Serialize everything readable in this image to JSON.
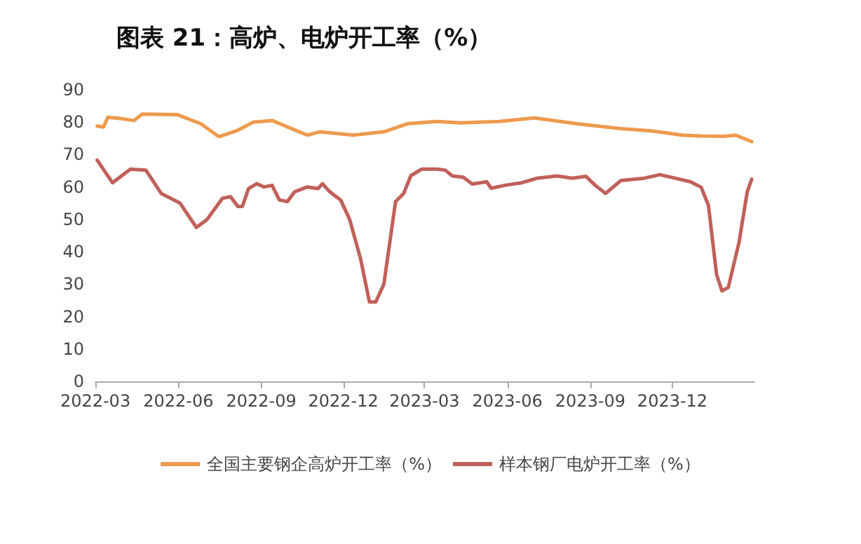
{
  "chart_data": {
    "type": "line",
    "title": "图表 21：高炉、电炉开工率（%）",
    "series": [
      {
        "name": "全国主要钢企高炉开工率（%）",
        "color": "#ed9a4e",
        "x": [
          "2022-03-03",
          "2022-03-10",
          "2022-03-15",
          "2022-04-01",
          "2022-04-13",
          "2022-04-22",
          "2022-05-31",
          "2022-06-26",
          "2022-07-16",
          "2022-08-06",
          "2022-08-23",
          "2022-09-13",
          "2022-10-22",
          "2022-11-05",
          "2022-12-12",
          "2023-01-15",
          "2023-02-10",
          "2023-03-15",
          "2023-04-10",
          "2023-05-23",
          "2023-07-01",
          "2023-08-17",
          "2023-10-05",
          "2023-11-08",
          "2023-12-12",
          "2024-01-02",
          "2024-01-27",
          "2024-02-09",
          "2024-02-27"
        ],
        "values": [
          78.8,
          78.5,
          81.5,
          81,
          80.5,
          82.5,
          82.3,
          79.5,
          75.5,
          77.5,
          80,
          80.5,
          76,
          77,
          76,
          77,
          79.5,
          80.2,
          79.8,
          80.2,
          81.3,
          79.5,
          78,
          77.3,
          76,
          75.7,
          75.6,
          76,
          74
        ]
      },
      {
        "name": "样本钢厂电炉开工率（%）",
        "color": "#c0605a",
        "x": [
          "2022-03-03",
          "2022-03-20",
          "2022-04-09",
          "2022-04-26",
          "2022-05-13",
          "2022-06-03",
          "2022-06-21",
          "2022-07-03",
          "2022-07-20",
          "2022-07-29",
          "2022-08-06",
          "2022-08-11",
          "2022-08-18",
          "2022-08-27",
          "2022-09-04",
          "2022-09-13",
          "2022-09-21",
          "2022-09-30",
          "2022-10-08",
          "2022-10-22",
          "2022-11-03",
          "2022-11-08",
          "2022-11-16",
          "2022-11-28",
          "2022-12-08",
          "2022-12-20",
          "2022-12-30",
          "2023-01-06",
          "2023-01-15",
          "2023-01-28",
          "2023-02-06",
          "2023-02-14",
          "2023-02-26",
          "2023-03-15",
          "2023-03-24",
          "2023-04-01",
          "2023-04-13",
          "2023-04-23",
          "2023-05-09",
          "2023-05-14",
          "2023-05-31",
          "2023-06-17",
          "2023-07-04",
          "2023-07-26",
          "2023-08-12",
          "2023-08-27",
          "2023-09-06",
          "2023-09-18",
          "2023-10-05",
          "2023-10-31",
          "2023-11-17",
          "2023-12-04",
          "2023-12-21",
          "2024-01-02",
          "2024-01-10",
          "2024-01-19",
          "2024-01-25",
          "2024-02-01",
          "2024-02-13",
          "2024-02-22",
          "2024-02-27"
        ],
        "values": [
          68.3,
          61.3,
          65.5,
          65.2,
          58,
          55,
          47.5,
          50,
          56.5,
          57,
          54,
          54,
          59.5,
          61,
          60,
          60.5,
          56,
          55.5,
          58.5,
          60,
          59.5,
          61,
          58.5,
          56,
          50,
          38,
          24.5,
          24.5,
          30,
          55.5,
          58,
          63.5,
          65.5,
          65.5,
          65.2,
          63.4,
          63,
          60.9,
          61.6,
          59.6,
          60.6,
          61.3,
          62.7,
          63.4,
          62.7,
          63.3,
          60.6,
          58,
          62,
          62.7,
          63.8,
          62.7,
          61.6,
          59.9,
          54.3,
          33,
          27.9,
          29,
          43,
          58.5,
          62.4
        ]
      }
    ],
    "xlim": [
      "2022-03",
      "2024-03"
    ],
    "xticks": [
      "2022-03",
      "2022-06",
      "2022-09",
      "2022-12",
      "2023-03",
      "2023-06",
      "2023-09",
      "2023-12"
    ],
    "ylim": [
      0,
      90
    ],
    "yticks": [
      0,
      10,
      20,
      30,
      40,
      50,
      60,
      70,
      80,
      90
    ],
    "grid": false,
    "legend": "bottom",
    "marker": "none",
    "line_style": "solid"
  }
}
